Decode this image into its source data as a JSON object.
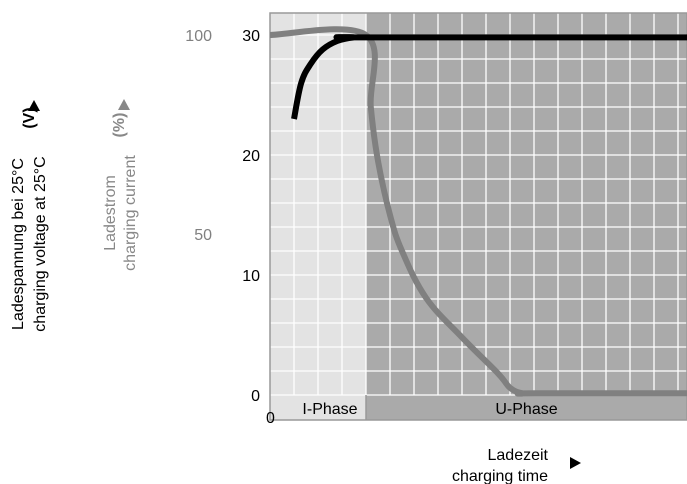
{
  "chart_data": {
    "type": "line",
    "x_axis": {
      "label_de": "Ladezeit",
      "label_en": "charging time",
      "origin_label": "0",
      "min": 0,
      "max": 16.75,
      "arrow": "right"
    },
    "y_axis_voltage": {
      "label_de": "Ladespannung bei 25°C",
      "label_en": "charging voltage at 25°C",
      "unit": "(V)",
      "ticks": [
        "0",
        "10",
        "20",
        "30"
      ],
      "min": 0,
      "max": 31.2,
      "color": "#000000"
    },
    "y_axis_current": {
      "label_de": "Ladestrom",
      "label_en": "charging current",
      "unit": "(%)",
      "ticks": [
        "50",
        "100"
      ],
      "tick_values": [
        50,
        100
      ],
      "color": "#808080"
    },
    "phases": [
      {
        "name": "I-Phase",
        "x_start": 0,
        "x_end": 3
      },
      {
        "name": "U-Phase",
        "x_start": 3,
        "x_end": 16.75
      }
    ],
    "series": [
      {
        "key": "voltage",
        "color": "#000000",
        "points": [
          [
            0,
            23
          ],
          [
            0.3,
            26
          ],
          [
            0.7,
            27.6
          ],
          [
            1.2,
            28.8
          ],
          [
            1.8,
            29.5
          ],
          [
            2.5,
            29.8
          ],
          [
            3,
            29.8
          ],
          [
            16.75,
            29.8
          ]
        ]
      },
      {
        "key": "current",
        "color": "#808080",
        "points": [
          [
            -1,
            100
          ],
          [
            3,
            100
          ],
          [
            3.2,
            80
          ],
          [
            3.5,
            65
          ],
          [
            4,
            50
          ],
          [
            4.5,
            40
          ],
          [
            5.5,
            27
          ],
          [
            7,
            16
          ],
          [
            8.5,
            6
          ],
          [
            9,
            2
          ],
          [
            9.5,
            0.5
          ],
          [
            10,
            0.5
          ],
          [
            16.75,
            0.5
          ]
        ]
      }
    ],
    "grid": true,
    "colors": {
      "i_phase_bg": "#e3e3e3",
      "u_phase_bg": "#aaaaaa",
      "grid_line": "#ffffff",
      "frame": "#999999",
      "current_label": "#888888"
    }
  }
}
